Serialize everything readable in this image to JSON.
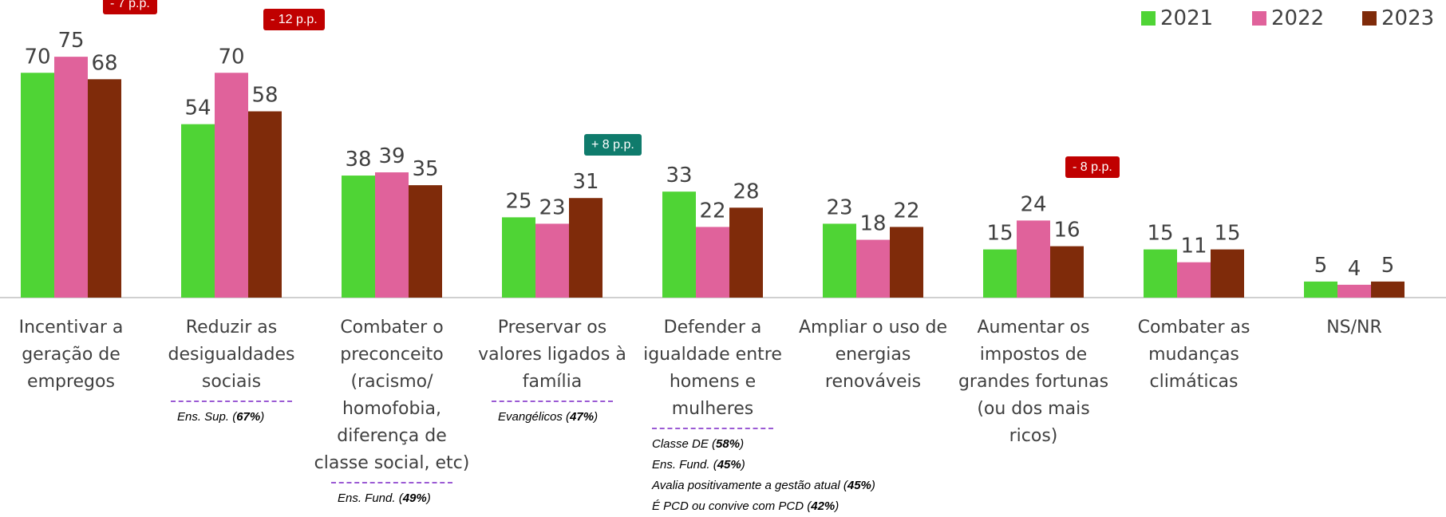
{
  "chart_data": {
    "type": "bar",
    "categories": [
      "Incentivar a\ngeração de\nempregos",
      "Reduzir as\ndesigualdades\nsociais",
      "Combater o\npreconceito\n(racismo/\nhomofobia,\ndiferença de\nclasse social, etc)",
      "Preservar os\nvalores ligados à\nfamília",
      "Defender a\nigualdade entre\nhomens e\nmulheres",
      "Ampliar o uso de\nenergias\nrenováveis",
      "Aumentar os\nimpostos de\ngrandes fortunas\n(ou dos mais\nricos)",
      "Combater as\nmudanças\nclimáticas",
      "NS/NR"
    ],
    "series": [
      {
        "name": "2021",
        "color": "#4fd435",
        "values": [
          70,
          54,
          38,
          25,
          33,
          23,
          15,
          15,
          5
        ]
      },
      {
        "name": "2022",
        "color": "#e0629b",
        "values": [
          75,
          70,
          39,
          23,
          22,
          18,
          24,
          11,
          4
        ]
      },
      {
        "name": "2023",
        "color": "#7f2b0a",
        "values": [
          68,
          58,
          35,
          31,
          28,
          22,
          16,
          15,
          5
        ]
      }
    ],
    "changes": [
      "- 7 p.p.",
      "- 12 p.p.",
      null,
      "+ 8 p.p.",
      null,
      null,
      "- 8 p.p.",
      null,
      null
    ],
    "change_colors": [
      "#c00000",
      "#c00000",
      null,
      "#0f7b6c",
      null,
      null,
      "#c00000",
      null,
      null
    ],
    "notes": [
      null,
      [
        "Ens. Sup. (67%)"
      ],
      [
        "Ens. Fund. (49%)"
      ],
      [
        "Evangélicos (47%)"
      ],
      [
        "Classe DE (58%)",
        "Ens. Fund. (45%)",
        "Avalia positivamente a gestão atual (45%)",
        "É PCD ou convive com PCD (42%)"
      ],
      null,
      null,
      null,
      null
    ],
    "ylim": [
      0,
      80
    ],
    "legend": "top-right"
  }
}
